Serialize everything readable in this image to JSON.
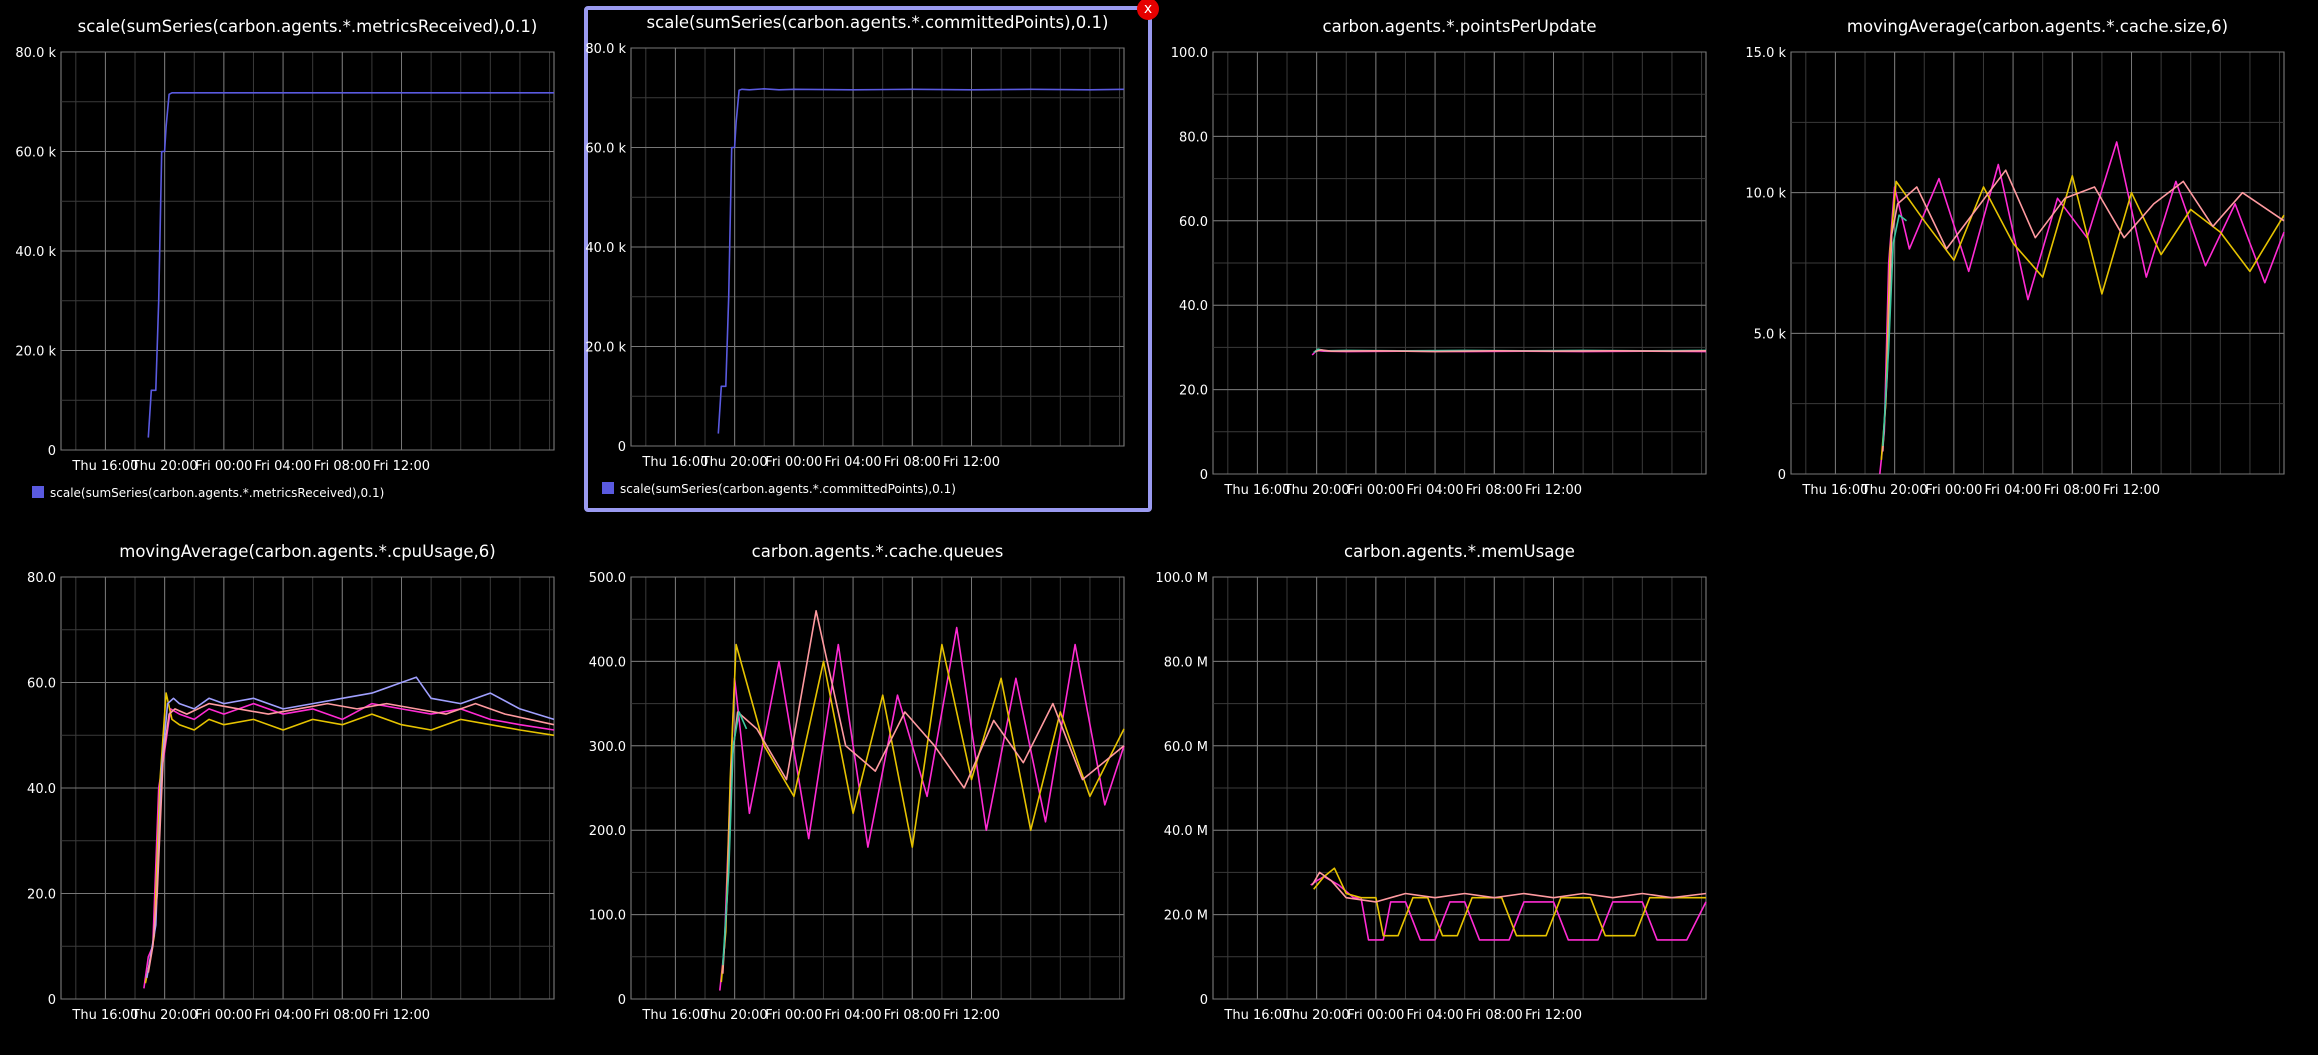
{
  "close_label": "x",
  "palette": [
    "#5a5ae0",
    "#ff2bd3",
    "#e6c300",
    "#ff9aa0",
    "#3cc8a0",
    "#a0a0ff"
  ],
  "chart_data": [
    {
      "type": "line",
      "title": "scale(sumSeries(carbon.agents.*.metricsReceived),0.1)",
      "x_ticks": [
        "Thu 16:00",
        "Thu 20:00",
        "Fri 00:00",
        "Fri 04:00",
        "Fri 08:00",
        "Fri 12:00"
      ],
      "ylim": [
        0,
        80000
      ],
      "y_ticks": [
        "0",
        "20.0 k",
        "40.0 k",
        "60.0 k",
        "80.0 k"
      ],
      "legend": true,
      "series": [
        {
          "name": "scale(sumSeries(carbon.agents.*.metricsReceived),0.1)",
          "color": "#5a5ae0",
          "x": [
            18.9,
            19.1,
            19.4,
            19.6,
            19.8,
            20.0,
            20.1,
            20.3,
            20.5,
            21,
            22,
            23,
            24,
            28,
            32,
            36,
            40,
            44,
            46.3
          ],
          "y": [
            2500,
            12000,
            12000,
            30000,
            60000,
            60000,
            65000,
            71500,
            71800,
            71800,
            71800,
            71800,
            71800,
            71800,
            71800,
            71800,
            71800,
            71800,
            71800
          ]
        }
      ]
    },
    {
      "type": "line",
      "title": "scale(sumSeries(carbon.agents.*.committedPoints),0.1)",
      "selected": true,
      "x_ticks": [
        "Thu 16:00",
        "Thu 20:00",
        "Fri 00:00",
        "Fri 04:00",
        "Fri 08:00",
        "Fri 12:00"
      ],
      "ylim": [
        0,
        80000
      ],
      "y_ticks": [
        "0",
        "20.0 k",
        "40.0 k",
        "60.0 k",
        "80.0 k"
      ],
      "legend": true,
      "series": [
        {
          "name": "scale(sumSeries(carbon.agents.*.committedPoints),0.1)",
          "color": "#5a5ae0",
          "x": [
            18.9,
            19.1,
            19.4,
            19.6,
            19.8,
            20.0,
            20.1,
            20.3,
            20.5,
            21,
            22,
            23,
            24,
            28,
            32,
            36,
            40,
            44,
            46.3
          ],
          "y": [
            2500,
            12000,
            12000,
            30000,
            60000,
            60000,
            65000,
            71500,
            71700,
            71600,
            71800,
            71600,
            71700,
            71600,
            71700,
            71600,
            71700,
            71600,
            71700
          ]
        }
      ]
    },
    {
      "type": "line",
      "title": "carbon.agents.*.pointsPerUpdate",
      "x_ticks": [
        "Thu 16:00",
        "Thu 20:00",
        "Fri 00:00",
        "Fri 04:00",
        "Fri 08:00",
        "Fri 12:00"
      ],
      "ylim": [
        0,
        100
      ],
      "y_ticks": [
        "0",
        "20.0",
        "40.0",
        "60.0",
        "80.0",
        "100.0"
      ],
      "series": [
        {
          "color": "#ff2bd3",
          "x": [
            19.7,
            20.0,
            20.5,
            22,
            26,
            30,
            34,
            38,
            42,
            46.3
          ],
          "y": [
            28.2,
            29.3,
            29.1,
            29.0,
            29.1,
            29.0,
            29.1,
            29.0,
            29.1,
            29.0
          ]
        },
        {
          "color": "#3cc8a0",
          "x": [
            19.8,
            20.1,
            20.6,
            22,
            26,
            30,
            34,
            38,
            42,
            46.3
          ],
          "y": [
            28.8,
            29.6,
            29.2,
            29.3,
            29.2,
            29.3,
            29.2,
            29.3,
            29.2,
            29.3
          ]
        },
        {
          "color": "#ff9aa0",
          "x": [
            19.9,
            20.3,
            21,
            24,
            28,
            32,
            36,
            40,
            44,
            46.3
          ],
          "y": [
            29.0,
            29.4,
            29.1,
            29.2,
            29.0,
            29.2,
            29.1,
            29.2,
            29.1,
            29.2
          ]
        }
      ]
    },
    {
      "type": "line",
      "title": "movingAverage(carbon.agents.*.cache.size,6)",
      "x_ticks": [
        "Thu 16:00",
        "Thu 20:00",
        "Fri 00:00",
        "Fri 04:00",
        "Fri 08:00",
        "Fri 12:00"
      ],
      "ylim": [
        0,
        15000
      ],
      "y_ticks": [
        "0",
        "5.0 k",
        "10.0 k",
        "15.0 k"
      ],
      "series": [
        {
          "color": "#ff2bd3",
          "x": [
            19.0,
            19.3,
            19.6,
            20.0,
            21,
            23,
            25,
            27,
            29,
            31,
            33,
            35,
            37,
            39,
            41,
            43,
            45,
            46.3
          ],
          "y": [
            0,
            1500,
            7500,
            10200,
            8000,
            10500,
            7200,
            11000,
            6200,
            9800,
            8400,
            11800,
            7000,
            10400,
            7400,
            9600,
            6800,
            8600
          ]
        },
        {
          "color": "#e6c300",
          "x": [
            19.1,
            19.4,
            19.7,
            20.1,
            22,
            24,
            26,
            28,
            30,
            32,
            34,
            36,
            38,
            40,
            42,
            44,
            46.3
          ],
          "y": [
            500,
            2500,
            8000,
            10400,
            9000,
            7600,
            10200,
            8200,
            7000,
            10600,
            6400,
            10000,
            7800,
            9400,
            8600,
            7200,
            9200
          ]
        },
        {
          "color": "#ff9aa0",
          "x": [
            19.2,
            19.5,
            19.8,
            20.2,
            21.5,
            23.5,
            25.5,
            27.5,
            29.5,
            31.5,
            33.5,
            35.5,
            37.5,
            39.5,
            41.5,
            43.5,
            46.3
          ],
          "y": [
            800,
            3500,
            8500,
            9600,
            10200,
            8000,
            9400,
            10800,
            8400,
            9800,
            10200,
            8400,
            9600,
            10400,
            8800,
            10000,
            9000
          ]
        },
        {
          "color": "#3cc8a0",
          "x": [
            19.2,
            19.6,
            19.9,
            20.3,
            20.8
          ],
          "y": [
            1000,
            4500,
            8200,
            9200,
            9000
          ]
        }
      ]
    },
    {
      "type": "line",
      "title": "movingAverage(carbon.agents.*.cpuUsage,6)",
      "x_ticks": [
        "Thu 16:00",
        "Thu 20:00",
        "Fri 00:00",
        "Fri 04:00",
        "Fri 08:00",
        "Fri 12:00"
      ],
      "ylim": [
        0,
        80
      ],
      "y_ticks": [
        "0",
        "20.0",
        "40.0",
        "60.0",
        "80.0"
      ],
      "series": [
        {
          "color": "#ff2bd3",
          "x": [
            18.6,
            18.9,
            19.2,
            19.6,
            20.0,
            20.4,
            21,
            22,
            23,
            24,
            26,
            28,
            30,
            32,
            34,
            36,
            38,
            40,
            42,
            44,
            46.3
          ],
          "y": [
            2,
            8,
            10,
            40,
            47,
            55,
            54,
            53,
            55,
            54,
            56,
            54,
            55,
            53,
            56,
            55,
            54,
            55,
            53,
            52,
            51
          ]
        },
        {
          "color": "#e6c300",
          "x": [
            18.7,
            19.0,
            19.3,
            19.7,
            20.1,
            20.5,
            21,
            22,
            23,
            24,
            26,
            28,
            30,
            32,
            34,
            36,
            38,
            40,
            42,
            44,
            46.3
          ],
          "y": [
            3,
            7,
            12,
            42,
            58,
            53,
            52,
            51,
            53,
            52,
            53,
            51,
            53,
            52,
            54,
            52,
            51,
            53,
            52,
            51,
            50
          ]
        },
        {
          "color": "#a0a0ff",
          "x": [
            18.8,
            19.1,
            19.4,
            19.8,
            20.2,
            20.6,
            21,
            22,
            23,
            24,
            26,
            28,
            30,
            32,
            34,
            36,
            37,
            38,
            40,
            42,
            44,
            46.3
          ],
          "y": [
            4,
            9,
            14,
            44,
            56,
            57,
            56,
            55,
            57,
            56,
            57,
            55,
            56,
            57,
            58,
            60,
            61,
            57,
            56,
            58,
            55,
            53
          ]
        },
        {
          "color": "#ff9aa0",
          "x": [
            18.9,
            19.2,
            19.5,
            19.9,
            20.3,
            20.7,
            21.5,
            23,
            25,
            27,
            29,
            31,
            33,
            35,
            37,
            39,
            41,
            43,
            46.3
          ],
          "y": [
            5,
            10,
            20,
            46,
            54,
            55,
            54,
            56,
            55,
            54,
            55,
            56,
            55,
            56,
            55,
            54,
            56,
            54,
            52
          ]
        }
      ]
    },
    {
      "type": "line",
      "title": "carbon.agents.*.cache.queues",
      "x_ticks": [
        "Thu 16:00",
        "Thu 20:00",
        "Fri 00:00",
        "Fri 04:00",
        "Fri 08:00",
        "Fri 12:00"
      ],
      "ylim": [
        0,
        500
      ],
      "y_ticks": [
        "0",
        "100.0",
        "200.0",
        "300.0",
        "400.0",
        "500.0"
      ],
      "series": [
        {
          "color": "#ff2bd3",
          "x": [
            19.0,
            19.3,
            19.6,
            20.0,
            21,
            23,
            25,
            27,
            29,
            31,
            33,
            35,
            37,
            39,
            41,
            43,
            45,
            46.3
          ],
          "y": [
            10,
            60,
            200,
            380,
            220,
            400,
            190,
            420,
            180,
            360,
            240,
            440,
            200,
            380,
            210,
            420,
            230,
            300
          ]
        },
        {
          "color": "#e6c300",
          "x": [
            19.1,
            19.4,
            19.7,
            20.1,
            22,
            24,
            26,
            28,
            30,
            32,
            34,
            36,
            38,
            40,
            42,
            44,
            46.3
          ],
          "y": [
            20,
            80,
            260,
            420,
            300,
            240,
            400,
            220,
            360,
            180,
            420,
            260,
            380,
            200,
            340,
            240,
            320
          ]
        },
        {
          "color": "#ff9aa0",
          "x": [
            19.2,
            19.5,
            19.8,
            20.2,
            21.5,
            23.5,
            25.5,
            27.5,
            29.5,
            31.5,
            33.5,
            35.5,
            37.5,
            39.5,
            41.5,
            43.5,
            46.3
          ],
          "y": [
            30,
            120,
            280,
            340,
            320,
            260,
            460,
            300,
            270,
            340,
            300,
            250,
            330,
            280,
            350,
            260,
            300
          ]
        },
        {
          "color": "#3cc8a0",
          "x": [
            19.2,
            19.6,
            19.9,
            20.3,
            20.8
          ],
          "y": [
            40,
            150,
            300,
            340,
            320
          ]
        }
      ]
    },
    {
      "type": "line",
      "title": "carbon.agents.*.memUsage",
      "x_ticks": [
        "Thu 16:00",
        "Thu 20:00",
        "Fri 00:00",
        "Fri 04:00",
        "Fri 08:00",
        "Fri 12:00"
      ],
      "ylim": [
        0,
        100000000
      ],
      "y_ticks": [
        "0",
        "20.0 M",
        "40.0 M",
        "60.0 M",
        "80.0 M",
        "100.0 M"
      ],
      "series": [
        {
          "color": "#ff2bd3",
          "x": [
            19.6,
            20.0,
            20.5,
            21.5,
            22.5,
            23,
            23.5,
            24.5,
            25,
            26,
            27,
            28,
            29,
            30,
            31,
            33,
            34,
            36,
            37,
            39,
            40,
            42,
            43,
            45,
            46.3
          ],
          "y": [
            27000000,
            28000000,
            29000000,
            27000000,
            24000000,
            24000000,
            14000000,
            14000000,
            23000000,
            23000000,
            14000000,
            14000000,
            23000000,
            23000000,
            14000000,
            14000000,
            23000000,
            23000000,
            14000000,
            14000000,
            23000000,
            23000000,
            14000000,
            14000000,
            23000000
          ]
        },
        {
          "color": "#e6c300",
          "x": [
            19.8,
            20.5,
            21.2,
            22,
            23,
            24,
            24.5,
            25.5,
            26.5,
            27.5,
            28.5,
            29.5,
            30.5,
            32.5,
            33.5,
            35.5,
            36.5,
            38.5,
            39.5,
            41.5,
            42.5,
            44.5,
            46.3
          ],
          "y": [
            26000000,
            29000000,
            31000000,
            25000000,
            24000000,
            24000000,
            15000000,
            15000000,
            24000000,
            24000000,
            15000000,
            15000000,
            24000000,
            24000000,
            15000000,
            15000000,
            24000000,
            24000000,
            15000000,
            15000000,
            24000000,
            24000000,
            24000000
          ]
        },
        {
          "color": "#ff9aa0",
          "x": [
            19.7,
            20.2,
            21.0,
            22.0,
            24,
            26,
            28,
            30,
            32,
            34,
            36,
            38,
            40,
            42,
            44,
            46.3
          ],
          "y": [
            27000000,
            30000000,
            28000000,
            24000000,
            23000000,
            25000000,
            24000000,
            25000000,
            24000000,
            25000000,
            24000000,
            25000000,
            24000000,
            25000000,
            24000000,
            25000000
          ]
        }
      ]
    }
  ]
}
